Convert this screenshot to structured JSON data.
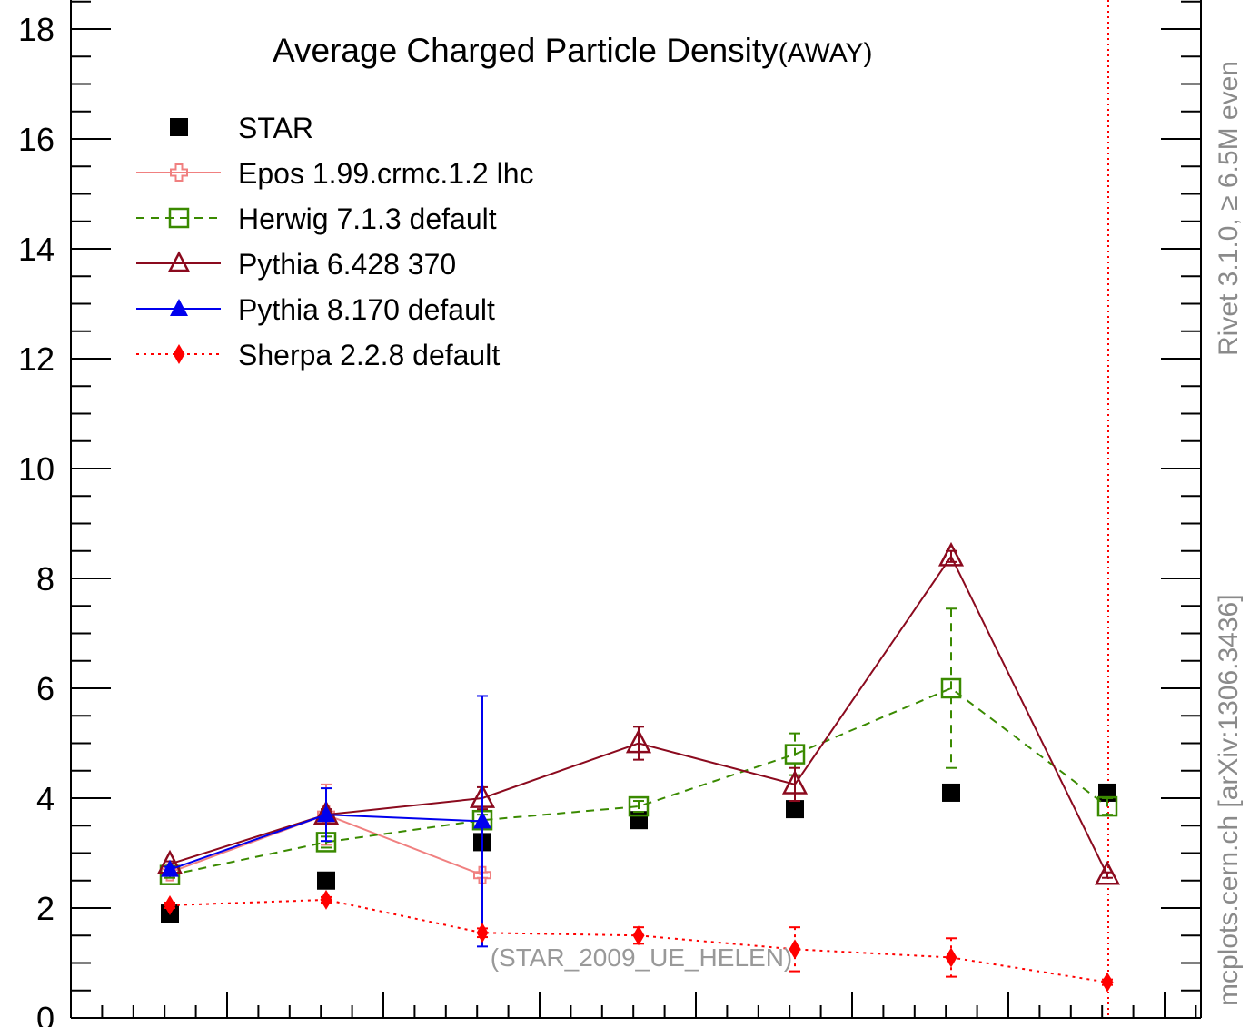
{
  "chart_data": {
    "type": "scatter",
    "title": "Average Charged Particle Density",
    "title_suffix": "(AWAY)",
    "watermark": "(STAR_2009_UE_HELEN)",
    "side_label_top": "Rivet 3.1.0, ≥ 6.5M even",
    "side_label_bottom": "mcplots.cern.ch [arXiv:1306.3436]",
    "xlabel": "",
    "ylabel": "",
    "ylim": [
      0,
      18.5
    ],
    "y_ticks": [
      "0",
      "2",
      "4",
      "6",
      "8",
      "10",
      "12",
      "14",
      "16",
      "18"
    ],
    "x": [
      1,
      2,
      3,
      4,
      5,
      6,
      7
    ],
    "legend_position": "top-left",
    "series": [
      {
        "name": "STAR",
        "color": "#000000",
        "marker": "filled-square",
        "line": "none",
        "values": [
          1.9,
          2.5,
          3.2,
          3.6,
          3.8,
          4.1,
          4.1
        ]
      },
      {
        "name": "Epos 1.99.crmc.1.2 lhc",
        "color": "#f08080",
        "marker": "open-cross",
        "line": "solid",
        "values": [
          2.65,
          3.7,
          2.6,
          null,
          null,
          null,
          null
        ],
        "errors": [
          0.05,
          0.55,
          0.05,
          null,
          null,
          null,
          null
        ]
      },
      {
        "name": "Herwig 7.1.3 default",
        "color": "#3a8a00",
        "marker": "open-square",
        "line": "dashed",
        "values": [
          2.6,
          3.2,
          3.6,
          3.85,
          4.8,
          6.0,
          3.85
        ],
        "errors": [
          0.05,
          0.1,
          0.1,
          0.1,
          0.38,
          1.45,
          0.15
        ]
      },
      {
        "name": "Pythia 6.428 370",
        "color": "#8b0a1e",
        "marker": "open-triangle",
        "line": "solid",
        "values": [
          2.8,
          3.7,
          4.0,
          5.0,
          4.25,
          8.4,
          2.6
        ],
        "errors": [
          0.05,
          0.1,
          0.2,
          0.3,
          0.3,
          0.1,
          0.05
        ]
      },
      {
        "name": "Pythia 8.170 default",
        "color": "#0000ee",
        "marker": "filled-triangle",
        "line": "solid",
        "values": [
          2.7,
          3.7,
          3.58,
          null,
          null,
          null,
          null
        ],
        "errors": [
          0.05,
          0.48,
          2.28,
          null,
          null,
          null,
          null
        ]
      },
      {
        "name": "Sherpa 2.2.8 default",
        "color": "#ff0000",
        "marker": "filled-diamond",
        "line": "dotted",
        "values": [
          2.05,
          2.15,
          1.55,
          1.5,
          1.25,
          1.1,
          0.65
        ],
        "errors": [
          0.05,
          0.05,
          0.08,
          0.15,
          0.4,
          0.35,
          0.05
        ]
      }
    ],
    "vertical_marker": {
      "color": "#ff0000",
      "style": "dotted",
      "x": 7
    }
  }
}
